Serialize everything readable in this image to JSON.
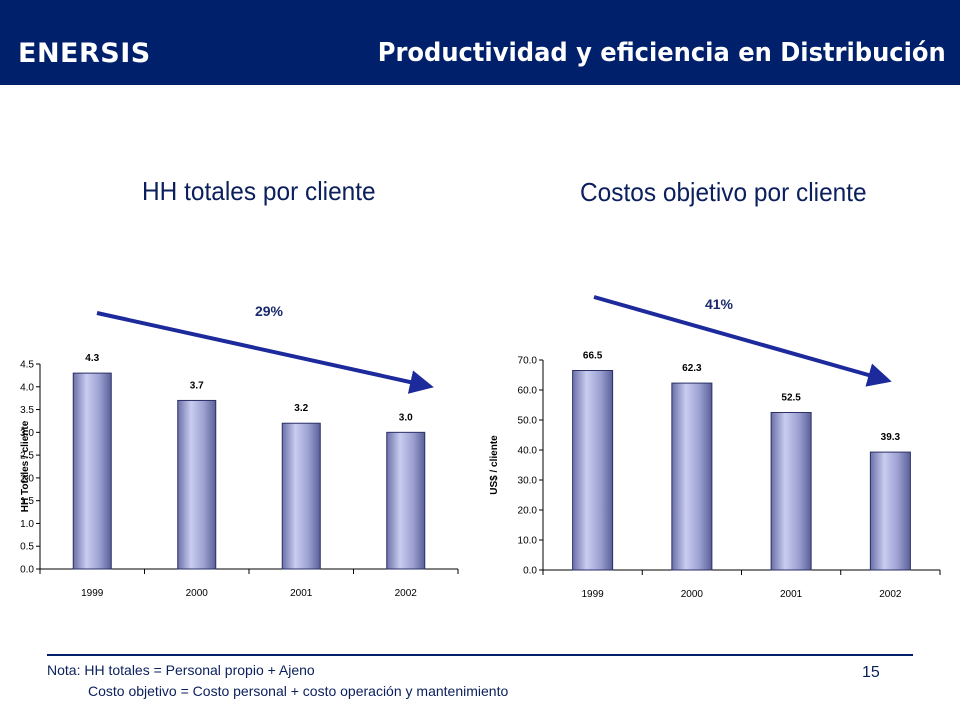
{
  "header": {
    "logo": "ENERSIS",
    "title": "Productividad y eficiencia en Distribución",
    "brand_color": "#00206c"
  },
  "chart_data": [
    {
      "type": "bar",
      "title": "HH totales por cliente",
      "ylabel": "HH Totales / cliente",
      "xlabel": "",
      "categories": [
        "1999",
        "2000",
        "2001",
        "2002"
      ],
      "values": [
        4.3,
        3.7,
        3.2,
        3.0
      ],
      "data_labels": [
        "4.3",
        "3.7",
        "3.2",
        "3.0"
      ],
      "ylim": [
        0,
        4.5
      ],
      "yticks": [
        "0.0",
        "0.5",
        "1.0",
        "1.5",
        "2.0",
        "2.5",
        "3.0",
        "3.5",
        "4.0",
        "4.5"
      ],
      "trend_label": "29%",
      "grid": false,
      "bar_color": "#9a9fd0"
    },
    {
      "type": "bar",
      "title": "Costos objetivo por cliente",
      "ylabel": "US$ / cliente",
      "xlabel": "",
      "categories": [
        "1999",
        "2000",
        "2001",
        "2002"
      ],
      "values": [
        66.5,
        62.3,
        52.5,
        39.3
      ],
      "data_labels": [
        "66.5",
        "62.3",
        "52.5",
        "39.3"
      ],
      "ylim": [
        0,
        70
      ],
      "yticks": [
        "0.0",
        "10.0",
        "20.0",
        "30.0",
        "40.0",
        "50.0",
        "60.0",
        "70.0"
      ],
      "trend_label": "41%",
      "grid": false,
      "bar_color": "#9a9fd0"
    }
  ],
  "notes": {
    "line1": "Nota: HH totales = Personal propio + Ajeno",
    "line2": "Costo objetivo = Costo personal + costo operación y mantenimiento"
  },
  "page_number": "15"
}
